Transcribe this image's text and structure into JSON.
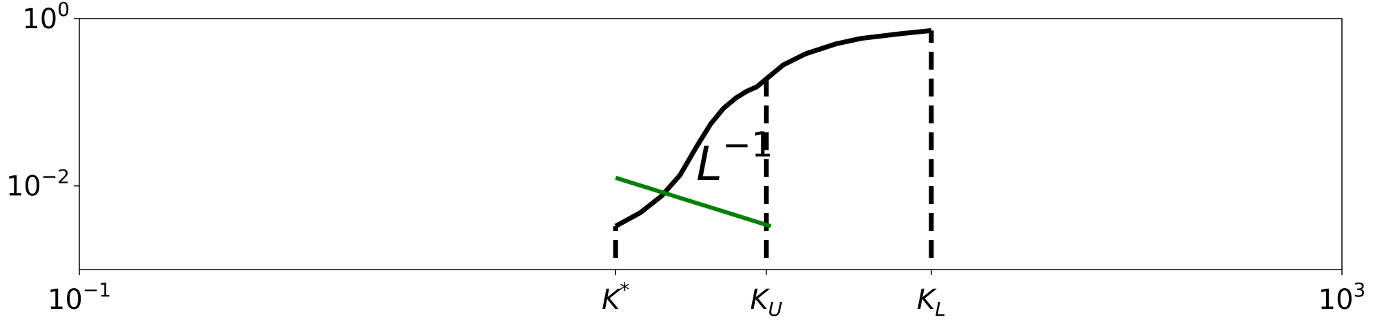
{
  "chart_data": {
    "type": "line",
    "title": "",
    "xlabel": "",
    "ylabel": "",
    "xscale": "log",
    "yscale": "log",
    "xlim": [
      0.1,
      1000
    ],
    "ylim": [
      0.001,
      1
    ],
    "grid": false,
    "x_ticks": [
      {
        "value": 0.1,
        "base": "10",
        "exp": "−1"
      },
      {
        "value": 1000,
        "base": "10",
        "exp": "3"
      }
    ],
    "x_named_ticks": [
      {
        "value": 5,
        "main": "K",
        "sub": "",
        "sup": "*"
      },
      {
        "value": 15,
        "main": "K",
        "sub": "U",
        "sup": ""
      },
      {
        "value": 50,
        "main": "K",
        "sub": "L",
        "sup": ""
      }
    ],
    "y_ticks": [
      {
        "value": 0.01,
        "base": "10",
        "exp": "−2"
      },
      {
        "value": 1,
        "base": "10",
        "exp": "0"
      }
    ],
    "series": [
      {
        "color": "#000000",
        "style": "solid",
        "points": [
          [
            5,
            0.0033
          ],
          [
            6,
            0.0048
          ],
          [
            7,
            0.0076
          ],
          [
            8,
            0.0135
          ],
          [
            9,
            0.029
          ],
          [
            10,
            0.055
          ],
          [
            11,
            0.085
          ],
          [
            12,
            0.112
          ],
          [
            13,
            0.135
          ],
          [
            14,
            0.153
          ],
          [
            15,
            0.19
          ],
          [
            17,
            0.28
          ],
          [
            20,
            0.38
          ],
          [
            25,
            0.5
          ],
          [
            30,
            0.58
          ],
          [
            40,
            0.66
          ],
          [
            50,
            0.72
          ]
        ]
      },
      {
        "color": "#008000",
        "style": "solid",
        "points": [
          [
            5,
            0.0125
          ],
          [
            15.5,
            0.0033
          ]
        ]
      }
    ],
    "vlines": [
      {
        "x": 5,
        "y_top": 0.0033,
        "style": "dashed",
        "color": "#000000"
      },
      {
        "x": 15,
        "y_top": 0.19,
        "style": "dashed",
        "color": "#000000"
      },
      {
        "x": 50,
        "y_top": 0.72,
        "style": "dashed",
        "color": "#000000"
      }
    ],
    "annotations": [
      {
        "main": "L",
        "sup": "−1",
        "x": 9,
        "y": 0.02
      }
    ]
  }
}
